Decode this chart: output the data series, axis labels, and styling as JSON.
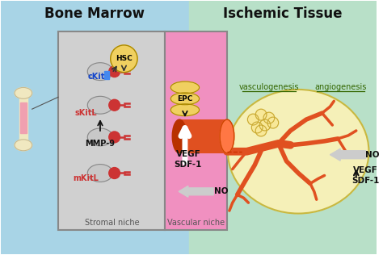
{
  "bg_left_color": "#a8d4e6",
  "bg_right_color": "#b8e0c8",
  "bone_marrow_title": "Bone Marrow",
  "ischemic_tissue_title": "Ischemic Tissue",
  "stromal_niche_label": "Stromal niche",
  "vascular_niche_label": "Vascular niche",
  "vasculogenesis_label": "vasculogenesis",
  "angiogenesis_label": "angiogenesis",
  "stromal_box_color": "#d0d0d0",
  "vascular_box_color": "#f090c0",
  "hsc_color": "#f0d060",
  "epc_color": "#f0d060",
  "red_cell_color": "#cc3333",
  "vessel_color": "#e05020",
  "labels": {
    "cKit": "cKit",
    "sKitL": "sKitL",
    "MMP9": "MMP-9",
    "mKitL": "mKitL",
    "VEGF_SDF1": "VEGF\nSDF-1",
    "NO": "NO",
    "HSC": "HSC",
    "EPC": "EPC",
    "VEGF_SDF1_right": "VEGF\nSDF-1",
    "NO_right": "NO"
  },
  "figsize": [
    4.74,
    3.16
  ],
  "dpi": 100
}
